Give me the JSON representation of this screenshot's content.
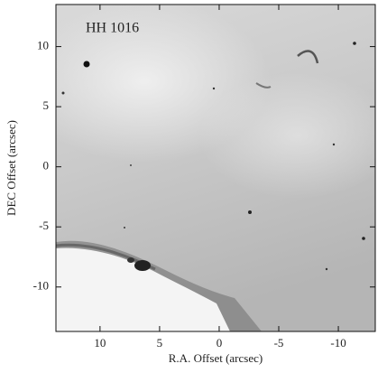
{
  "chart_data": {
    "type": "image",
    "annotation": "HH 1016",
    "xlabel": "R.A. Offset (arcsec)",
    "ylabel": "DEC Offset (arcsec)",
    "xlim": [
      13.7,
      -13.1
    ],
    "ylim": [
      -13.7,
      13.5
    ],
    "xticks": [
      10,
      5,
      0,
      -5,
      -10
    ],
    "yticks": [
      10,
      5,
      0,
      -5,
      -10
    ]
  }
}
